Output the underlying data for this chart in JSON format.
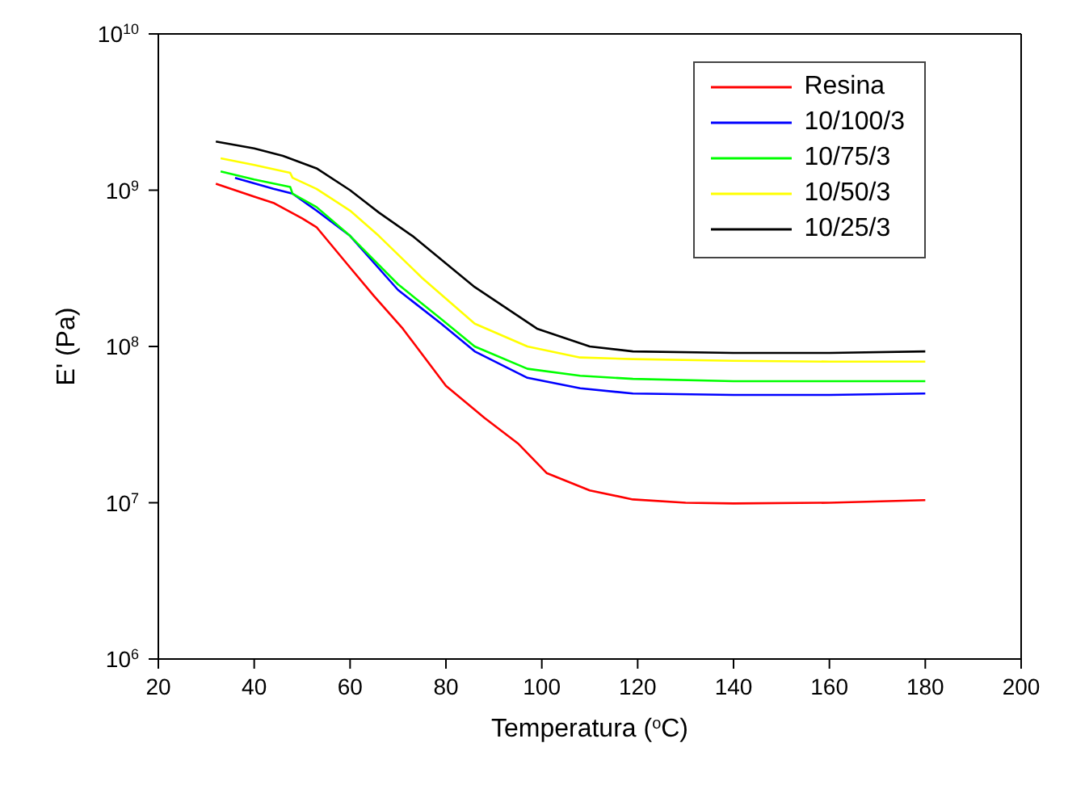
{
  "chart_data": {
    "type": "line",
    "xlabel": "Temperatura ($^{o}$C)",
    "ylabel": "E' (Pa)",
    "log": "y",
    "xlim": [
      20,
      200
    ],
    "xticks": [
      20,
      40,
      60,
      80,
      100,
      120,
      140,
      160,
      180,
      200
    ],
    "ylim": [
      1000000.0,
      10000000000.0
    ],
    "yticks": [
      {
        "value": 1000000.0,
        "label": "10$^{6}$"
      },
      {
        "value": 10000000.0,
        "label": "10$^{7}$"
      },
      {
        "value": 100000000.0,
        "label": "10$^{8}$"
      },
      {
        "value": 1000000000.0,
        "label": "10$^{9}$"
      },
      {
        "value": 10000000000.0,
        "label": "10$^{10}$"
      }
    ],
    "legend": "top right",
    "series": [
      {
        "name": "Resina",
        "color": "#ff0000",
        "x": [
          32,
          40,
          44,
          50,
          53,
          60,
          65,
          71,
          80,
          88,
          95,
          101,
          110,
          119,
          130,
          140,
          160,
          180
        ],
        "values": [
          1100000000.0,
          910000000.0,
          830000000.0,
          660000000.0,
          580000000.0,
          320000000.0,
          210000000.0,
          130000000.0,
          56000000.0,
          35000000.0,
          24000000.0,
          15500000.0,
          12000000.0,
          10500000.0,
          10000000.0,
          9900000.0,
          10000000.0,
          10400000.0
        ]
      },
      {
        "name": "10/100/3",
        "color": "#0000ff",
        "x": [
          36,
          44,
          48,
          53,
          60,
          70,
          79,
          86,
          97,
          108,
          119,
          140,
          160,
          180
        ],
        "values": [
          1200000000.0,
          1020000000.0,
          950000000.0,
          740000000.0,
          510000000.0,
          230000000.0,
          140000000.0,
          93000000.0,
          63000000.0,
          54000000.0,
          50000000.0,
          49000000.0,
          49000000.0,
          50000000.0
        ]
      },
      {
        "name": "10/75/3",
        "color": "#00ff00",
        "x": [
          33,
          40,
          47.5,
          48,
          53,
          60,
          70,
          79,
          86,
          97,
          108,
          119,
          140,
          160,
          180
        ],
        "values": [
          1320000000.0,
          1170000000.0,
          1050000000.0,
          950000000.0,
          780000000.0,
          510000000.0,
          250000000.0,
          150000000.0,
          100000000.0,
          72000000.0,
          65000000.0,
          62000000.0,
          60000000.0,
          60000000.0,
          60000000.0
        ]
      },
      {
        "name": "10/50/3",
        "color": "#ffff00",
        "x": [
          33,
          40,
          47.5,
          48,
          53,
          60,
          66,
          75,
          86,
          97,
          108,
          119,
          140,
          160,
          180
        ],
        "values": [
          1600000000.0,
          1450000000.0,
          1290000000.0,
          1200000000.0,
          1020000000.0,
          740000000.0,
          510000000.0,
          275000000.0,
          140000000.0,
          100000000.0,
          85000000.0,
          83000000.0,
          81000000.0,
          80000000.0,
          80000000.0
        ]
      },
      {
        "name": "10/25/3",
        "color": "#000000",
        "x": [
          32,
          40,
          46,
          53,
          60,
          66,
          73,
          86,
          99,
          110,
          119,
          140,
          160,
          180
        ],
        "values": [
          2050000000.0,
          1850000000.0,
          1660000000.0,
          1380000000.0,
          1000000000.0,
          720000000.0,
          510000000.0,
          240000000.0,
          130000000.0,
          100000000.0,
          93000000.0,
          91000000.0,
          91000000.0,
          93000000.0
        ]
      }
    ]
  }
}
